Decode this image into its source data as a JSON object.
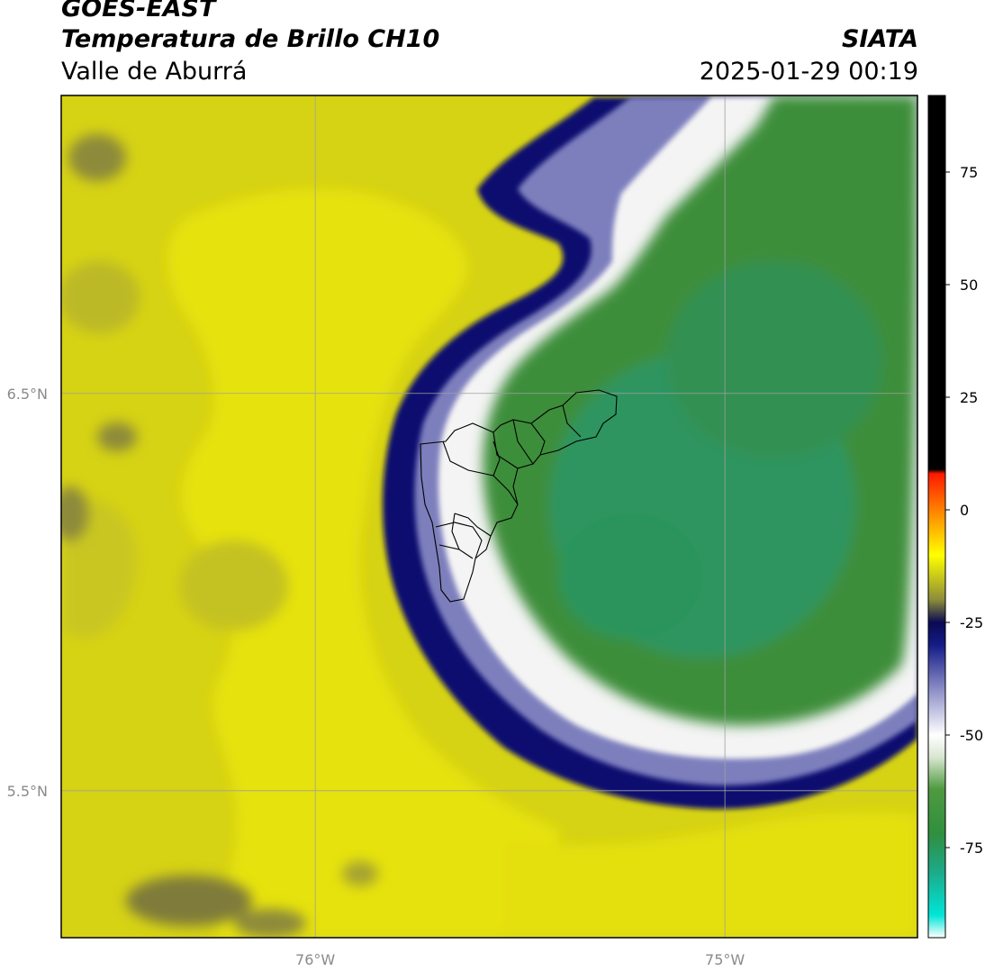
{
  "header": {
    "title": "GOES-EAST",
    "subtitle": "Temperatura de Brillo CH10",
    "region": "Valle de Aburrá",
    "organization": "SIATA",
    "timestamp": "2025-01-29 00:19"
  },
  "map": {
    "lon_range": [
      -76.62,
      -74.53
    ],
    "lat_range": [
      5.13,
      7.25
    ],
    "lon_ticks": [
      {
        "value": -76,
        "label": "76°W"
      },
      {
        "value": -75,
        "label": "75°W"
      }
    ],
    "lat_ticks": [
      {
        "value": 6.5,
        "label": "6.5°N"
      },
      {
        "value": 5.5,
        "label": "5.5°N"
      }
    ],
    "grid": true
  },
  "colorbar": {
    "min": -95,
    "max": 92,
    "ticks": [
      {
        "value": 75,
        "label": "75"
      },
      {
        "value": 50,
        "label": "50"
      },
      {
        "value": 25,
        "label": "25"
      },
      {
        "value": 0,
        "label": "0"
      },
      {
        "value": -25,
        "label": "-25"
      },
      {
        "value": -50,
        "label": "-50"
      },
      {
        "value": -75,
        "label": "-75"
      }
    ],
    "stops": [
      {
        "value": -95,
        "color": "#ffffff"
      },
      {
        "value": -90,
        "color": "#00e5d8"
      },
      {
        "value": -80,
        "color": "#1ea886"
      },
      {
        "value": -72,
        "color": "#2f8f3e"
      },
      {
        "value": -62,
        "color": "#4f9a3f"
      },
      {
        "value": -55,
        "color": "#d7e6d0"
      },
      {
        "value": -50,
        "color": "#ffffff"
      },
      {
        "value": -40,
        "color": "#8d8fc7"
      },
      {
        "value": -30,
        "color": "#141c86"
      },
      {
        "value": -25,
        "color": "#0a0a52"
      },
      {
        "value": -20,
        "color": "#8c8c3a"
      },
      {
        "value": -10,
        "color": "#ffff00"
      },
      {
        "value": -2,
        "color": "#ff9a00"
      },
      {
        "value": 8,
        "color": "#ff1a00"
      },
      {
        "value": 9,
        "color": "#000000"
      },
      {
        "value": 92,
        "color": "#000000"
      }
    ]
  },
  "colors": {
    "background_yellow": "#d8d410",
    "bright_yellow": "#e6e10a",
    "olive": "#b6b42a",
    "dark_band": "#0c1170",
    "white_band": "#ffffff",
    "green_core": "#3a8d38",
    "teal_core": "#2a9e6e",
    "boundary_line": "#000000",
    "grid_line": "#a0a0a0",
    "tick_label": "#8a8a8a"
  }
}
